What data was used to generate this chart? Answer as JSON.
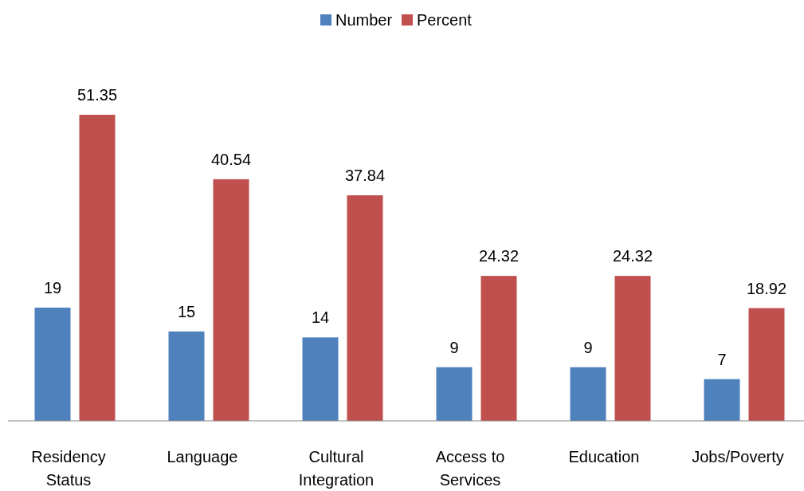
{
  "chart_data": {
    "type": "bar",
    "categories": [
      "Residency Status",
      "Language",
      "Cultural Integration",
      "Access to Services",
      "Education",
      "Jobs/Poverty"
    ],
    "series": [
      {
        "name": "Number",
        "color": "#4f81bd",
        "values": [
          19,
          15,
          14,
          9,
          9,
          7
        ]
      },
      {
        "name": "Percent",
        "color": "#c0504d",
        "values": [
          51.35,
          40.54,
          37.84,
          24.32,
          24.32,
          18.92
        ]
      }
    ],
    "data_labels": true,
    "legend": "top",
    "grid": false
  }
}
